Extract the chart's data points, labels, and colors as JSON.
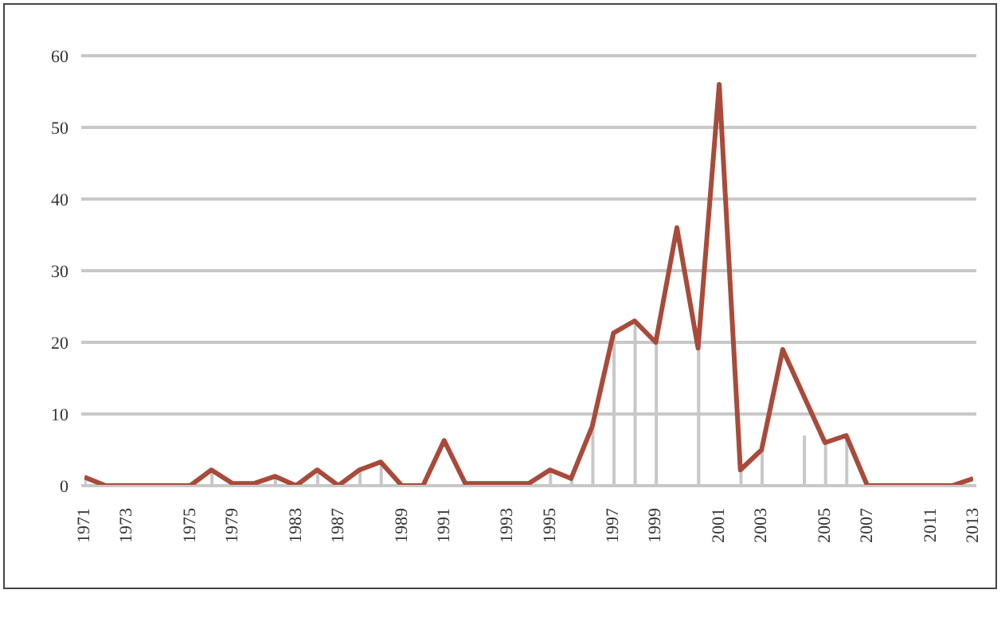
{
  "chart_data": {
    "type": "line",
    "categories": [
      "1971",
      null,
      "1973",
      null,
      null,
      "1975",
      null,
      "1979",
      null,
      null,
      "1983",
      null,
      "1987",
      null,
      null,
      "1989",
      null,
      "1991",
      null,
      null,
      "1993",
      null,
      "1995",
      null,
      null,
      "1997",
      null,
      "1999",
      null,
      null,
      "2001",
      null,
      "2003",
      null,
      null,
      "2005",
      null,
      "2007",
      null,
      null,
      "2011",
      null,
      "2013"
    ],
    "series": [
      {
        "type": "bar",
        "color": "#c8c8c8",
        "values": [
          1.2,
          0,
          0,
          0,
          0,
          0,
          2.2,
          0.3,
          0.3,
          1.3,
          0,
          2.2,
          0,
          2.2,
          3.3,
          0,
          0,
          null,
          0.3,
          0.3,
          0.3,
          0.3,
          2.2,
          1,
          8.3,
          21.3,
          23,
          20,
          null,
          19.2,
          null,
          2.2,
          5,
          null,
          7,
          6,
          7,
          0,
          0,
          0,
          0,
          0,
          null
        ]
      },
      {
        "color": "#a94a3a",
        "values": [
          1.2,
          0,
          0,
          0,
          0,
          0,
          2.2,
          0.3,
          0.3,
          1.3,
          0,
          2.2,
          0,
          2.2,
          3.3,
          0,
          0,
          6.3,
          0.3,
          0.3,
          0.3,
          0.3,
          2.2,
          1,
          8.3,
          21.3,
          23,
          20,
          36,
          19.2,
          56,
          2.2,
          5,
          19,
          12.5,
          6,
          7,
          0,
          0,
          0,
          0,
          0,
          1
        ]
      }
    ],
    "ylim": [
      0,
      60
    ],
    "yticks": [
      0,
      10,
      20,
      30,
      40,
      50,
      60
    ],
    "grid": "y"
  }
}
